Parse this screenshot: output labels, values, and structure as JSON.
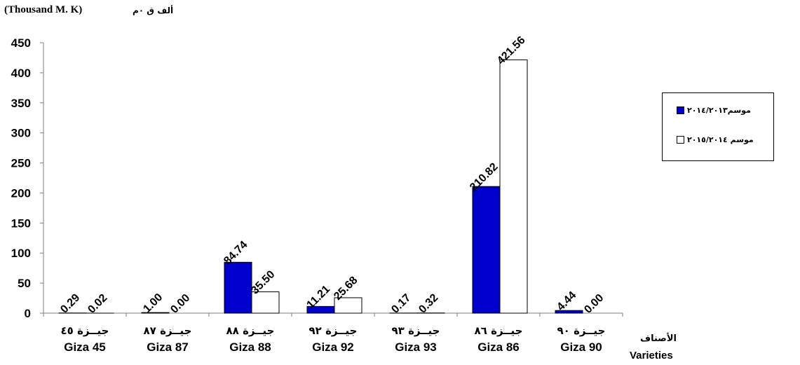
{
  "unit_label_en": "(Thousand M. K)",
  "unit_label_ar": "ألف ق ٠م",
  "xaxis_label_ar": "الأصناف",
  "xaxis_label_en": "Varieties",
  "colors": {
    "series1": "#0000cc",
    "series2": "#ffffff",
    "axis": "#808080"
  },
  "chart_data": {
    "type": "bar",
    "categories": [
      "Giza 45",
      "Giza 87",
      "Giza 88",
      "Giza 92",
      "Giza 93",
      "Giza 86",
      "Giza 90"
    ],
    "categories_ar": [
      "جيــزة ٤٥",
      "جيــزة ٨٧",
      "جيــزة ٨٨",
      "جيــزة ٩٢",
      "جيــزة ٩٣",
      "جيــزة ٨٦",
      "جيــزة ٩٠"
    ],
    "series": [
      {
        "name": "موسم٢٠١٤/٢٠١٣",
        "values": [
          0.29,
          1.0,
          84.74,
          11.21,
          0.17,
          210.82,
          4.44
        ],
        "labels": [
          "0.29",
          "1.00",
          "84.74",
          "11.21",
          "0.17",
          "210.82",
          "4.44"
        ]
      },
      {
        "name": "موسم ٢٠١٥/٢٠١٤",
        "values": [
          0.02,
          0.0,
          35.5,
          25.68,
          0.32,
          421.56,
          0.0
        ],
        "labels": [
          "0.02",
          "0.00",
          "35.50",
          "25.68",
          "0.32",
          "421.56",
          "0.00"
        ]
      }
    ],
    "ylim": [
      0,
      450
    ],
    "yticks": [
      0,
      50,
      100,
      150,
      200,
      250,
      300,
      350,
      400,
      450
    ],
    "grid": false,
    "legend_position": "right"
  }
}
